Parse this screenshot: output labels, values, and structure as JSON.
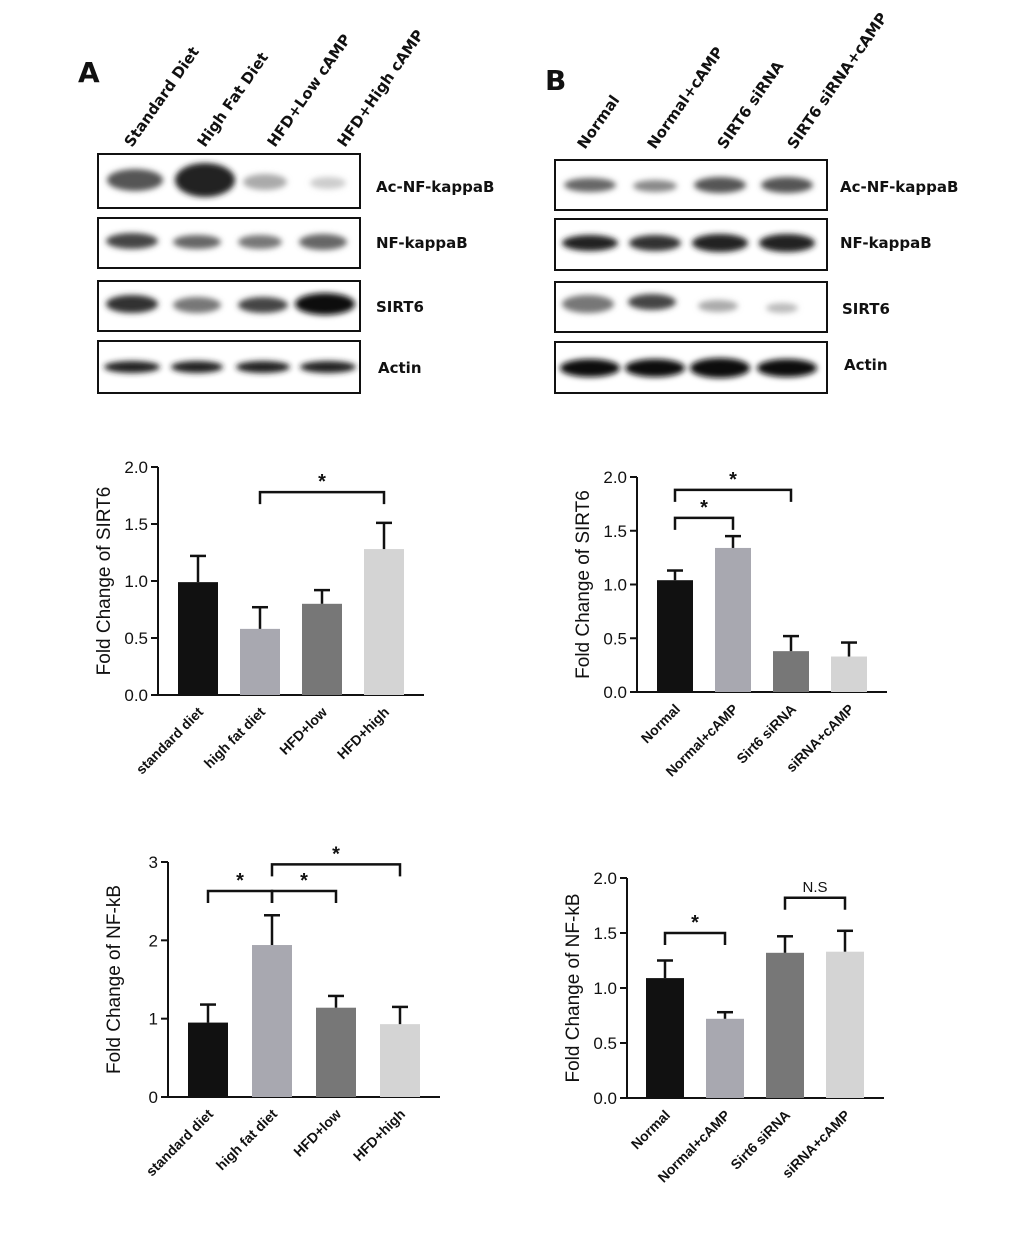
{
  "panelA": {
    "letter": "A",
    "lanes": [
      "Standard Diet",
      "High Fat Diet",
      "HFD+Low cAMP",
      "HFD+High cAMP"
    ],
    "rows": [
      "Ac-NF-kappaB",
      "NF-kappaB",
      "SIRT6",
      "Actin"
    ]
  },
  "panelB": {
    "letter": "B",
    "lanes": [
      "Normal",
      "Normal+cAMP",
      "SIRT6 siRNA",
      "SIRT6 siRNA+cAMP"
    ],
    "rows": [
      "Ac-NF-kappaB",
      "NF-kappaB",
      "SIRT6",
      "Actin"
    ]
  },
  "chart_data": [
    {
      "type": "bar",
      "ylabel": "Fold Change of SIRT6",
      "categories": [
        "standard diet",
        "high fat diet",
        "HFD+low",
        "HFD+high"
      ],
      "values": [
        0.99,
        0.58,
        0.8,
        1.28
      ],
      "errors": [
        0.23,
        0.19,
        0.12,
        0.23
      ],
      "colors": [
        "#111111",
        "#a8a8b0",
        "#777777",
        "#d4d4d4"
      ],
      "ylim": [
        0,
        2.0
      ],
      "yticks": [
        "0.0",
        "0.5",
        "1.0",
        "1.5",
        "2.0"
      ],
      "significance": [
        {
          "from": 1,
          "to": 3,
          "label": "*",
          "y": 1.78,
          "tier": 0
        }
      ]
    },
    {
      "type": "bar",
      "ylabel": "Fold Change of SIRT6",
      "categories": [
        "Normal",
        "Normal+cAMP",
        "Sirt6 siRNA",
        "siRNA+cAMP"
      ],
      "values": [
        1.04,
        1.34,
        0.38,
        0.33
      ],
      "errors": [
        0.09,
        0.11,
        0.14,
        0.13
      ],
      "colors": [
        "#111111",
        "#a8a8b0",
        "#777777",
        "#d4d4d4"
      ],
      "ylim": [
        0,
        2.0
      ],
      "yticks": [
        "0.0",
        "0.5",
        "1.0",
        "1.5",
        "2.0"
      ],
      "significance": [
        {
          "from": 0,
          "to": 1,
          "label": "*",
          "y": 1.62,
          "tier": 0
        },
        {
          "from": 0,
          "to": 2,
          "label": "*",
          "y": 1.88,
          "tier": 1
        }
      ]
    },
    {
      "type": "bar",
      "ylabel": "Fold Change of NF-kB",
      "categories": [
        "standard diet",
        "high fat diet",
        "HFD+low",
        "HFD+high"
      ],
      "values": [
        0.95,
        1.94,
        1.14,
        0.93
      ],
      "errors": [
        0.23,
        0.38,
        0.15,
        0.22
      ],
      "colors": [
        "#111111",
        "#a8a8b0",
        "#777777",
        "#d4d4d4"
      ],
      "ylim": [
        0,
        3
      ],
      "yticks": [
        "0",
        "1",
        "2",
        "3"
      ],
      "significance": [
        {
          "from": 0,
          "to": 1,
          "label": "*",
          "y": 2.63,
          "tier": 0
        },
        {
          "from": 1,
          "to": 2,
          "label": "*",
          "y": 2.63,
          "tier": 0
        },
        {
          "from": 1,
          "to": 3,
          "label": "*",
          "y": 2.97,
          "tier": 1
        }
      ]
    },
    {
      "type": "bar",
      "ylabel": "Fold Change of NF-kB",
      "categories": [
        "Normal",
        "Normal+cAMP",
        "Sirt6 siRNA",
        "siRNA+cAMP"
      ],
      "values": [
        1.09,
        0.72,
        1.32,
        1.33
      ],
      "errors": [
        0.16,
        0.06,
        0.15,
        0.19
      ],
      "colors": [
        "#111111",
        "#a8a8b0",
        "#777777",
        "#d4d4d4"
      ],
      "ylim": [
        0,
        2.0
      ],
      "yticks": [
        "0.0",
        "0.5",
        "1.0",
        "1.5",
        "2.0"
      ],
      "significance": [
        {
          "from": 0,
          "to": 1,
          "label": "*",
          "y": 1.5,
          "tier": 0
        },
        {
          "from": 2,
          "to": 3,
          "label": "N.S",
          "y": 1.82,
          "tier": 0
        }
      ]
    }
  ]
}
